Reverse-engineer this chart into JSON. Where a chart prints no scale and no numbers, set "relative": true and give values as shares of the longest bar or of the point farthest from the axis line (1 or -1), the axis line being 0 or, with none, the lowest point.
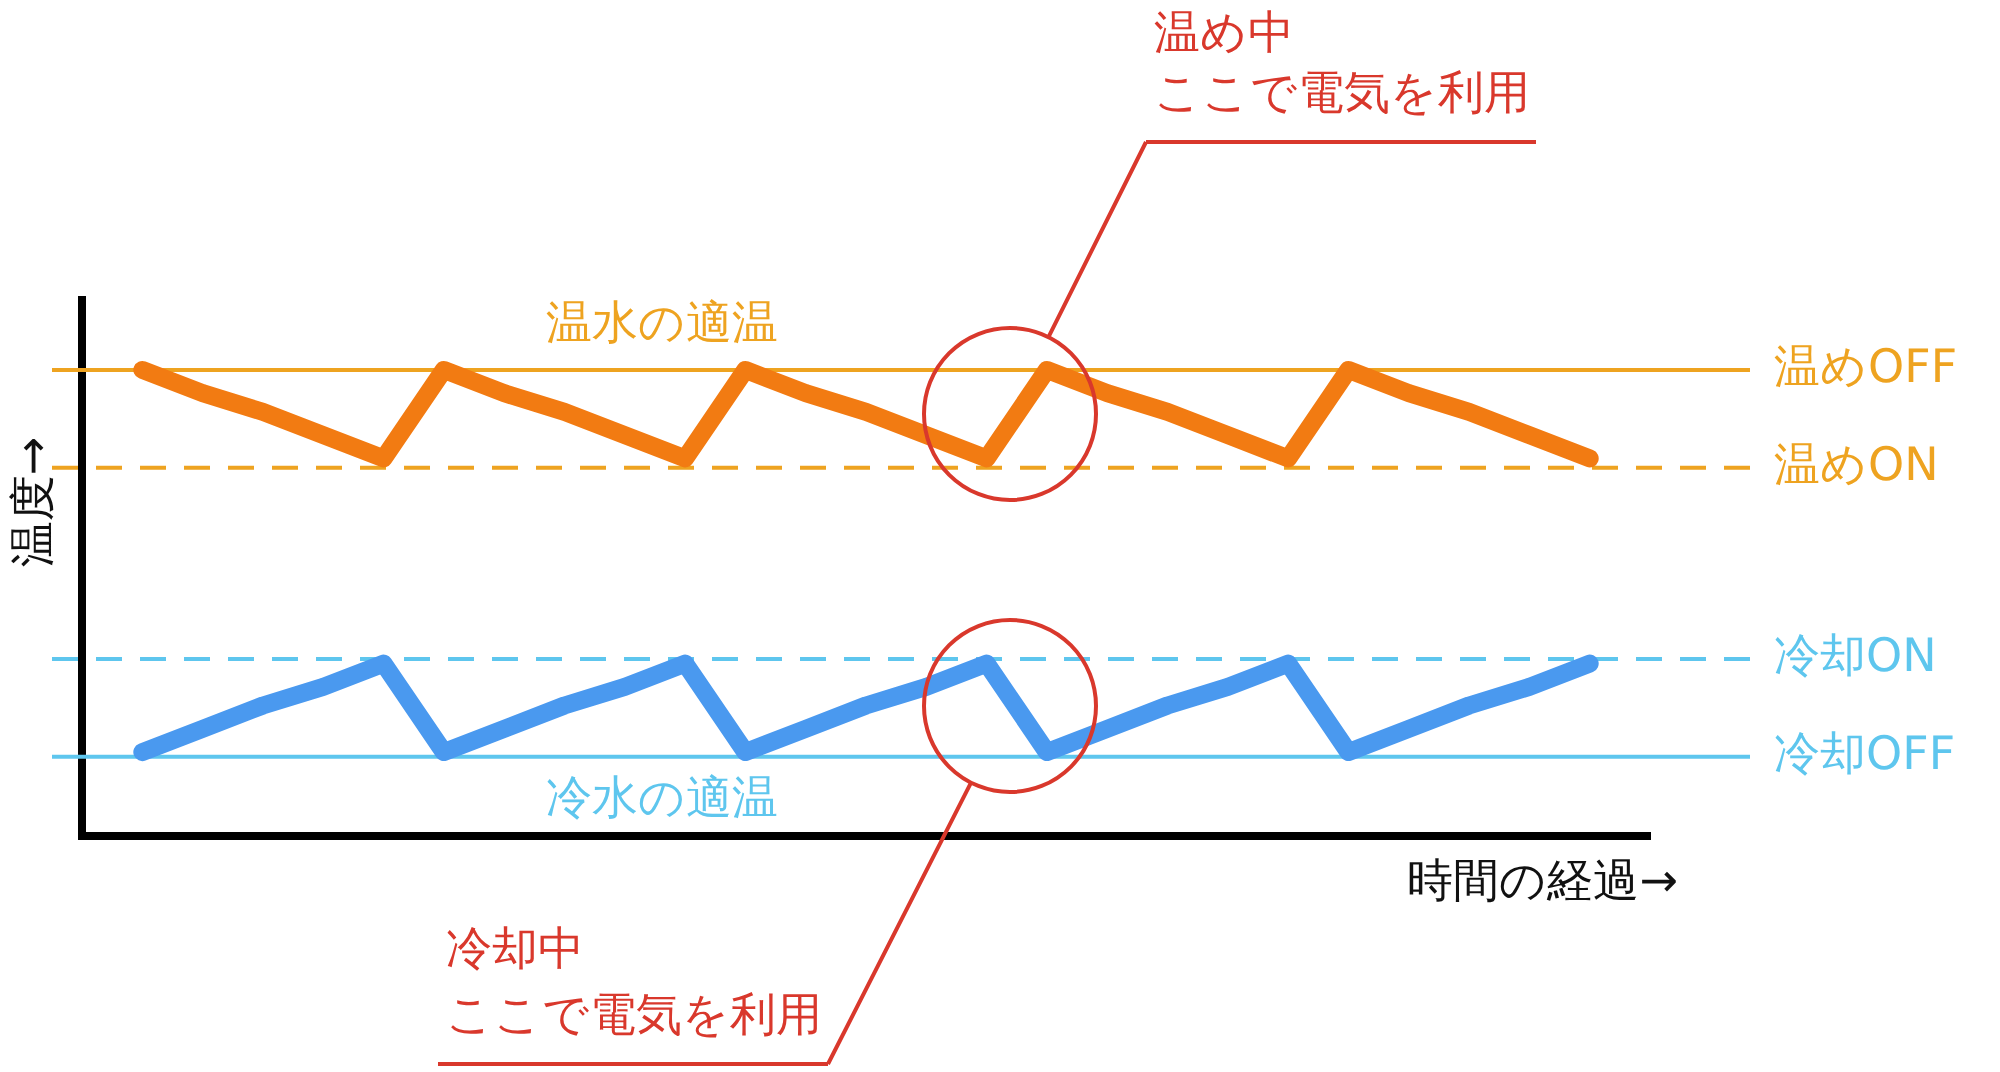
{
  "chart_data": {
    "type": "line",
    "relative": true,
    "xlabel": "時間の経過→",
    "ylabel": "温度→",
    "categories": [
      null,
      null,
      null,
      null,
      null,
      null,
      null,
      null,
      null,
      null,
      null,
      null,
      null,
      null,
      null,
      null,
      null,
      null,
      null,
      null,
      null,
      null,
      null,
      null,
      null
    ],
    "series": [
      {
        "color": "#f27b12",
        "values": [
          1,
          0.95,
          0.91,
          0.86,
          0.81,
          1,
          0.95,
          0.91,
          0.86,
          0.81,
          1,
          0.95,
          0.91,
          0.86,
          0.81,
          1,
          0.95,
          0.91,
          0.86,
          0.81,
          1,
          0.95,
          0.91,
          0.86,
          0.81
        ]
      },
      {
        "color": "#4a99ef",
        "values": [
          0.18,
          0.23,
          0.28,
          0.32,
          0.37,
          0.18,
          0.23,
          0.28,
          0.32,
          0.37,
          0.18,
          0.23,
          0.28,
          0.32,
          0.37,
          0.18,
          0.23,
          0.28,
          0.32,
          0.37,
          0.18,
          0.23,
          0.28,
          0.32,
          0.37
        ]
      }
    ],
    "ref_lines": [
      {
        "axis": "y",
        "value": 1,
        "label": "温めOFF",
        "color": "#eea320",
        "line_style": "solid"
      },
      {
        "axis": "y",
        "value": 0.79,
        "label": "温めON",
        "color": "#eea320",
        "line_style": "dashed"
      },
      {
        "axis": "y",
        "value": 0.38,
        "label": "冷却ON",
        "color": "#5ec6ee",
        "line_style": "dashed"
      },
      {
        "axis": "y",
        "value": 0.17,
        "label": "冷却OFF",
        "color": "#5ec6ee",
        "line_style": "solid"
      }
    ],
    "annotations": [
      {
        "text": "温水の適温",
        "y": 1
      },
      {
        "text": "冷水の適温",
        "y": 0.17
      },
      "温め中",
      "ここで電気を利用",
      "冷却中",
      "ここで電気を利用"
    ],
    "grid": false,
    "legend": false,
    "tick_labels": false,
    "marker": "none"
  }
}
